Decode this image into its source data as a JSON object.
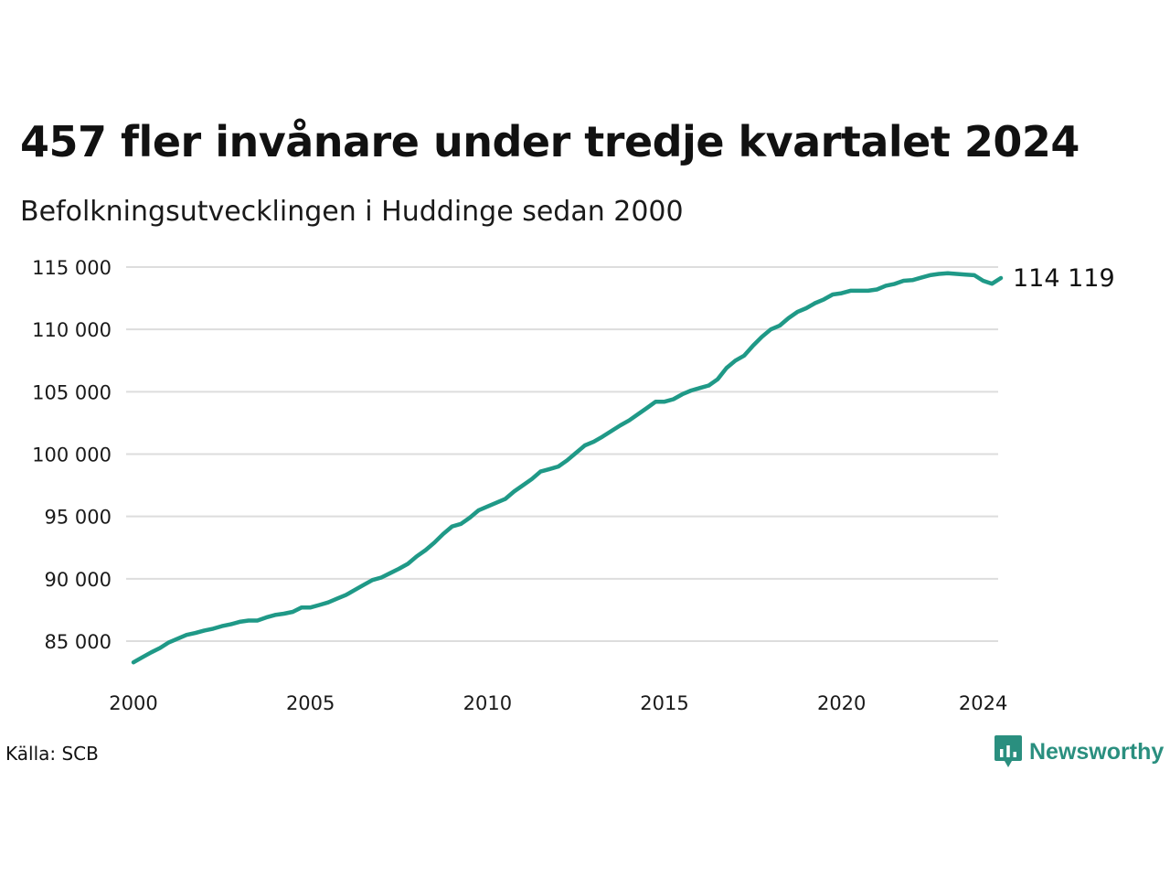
{
  "title": "457 fler invånare under tredje kvartalet 2024",
  "subtitle": "Befolkningsutvecklingen i Huddinge sedan 2000",
  "source": "Källa: SCB",
  "brand": {
    "name": "Newsworthy",
    "color": "#2a8f7f",
    "icon": "newsworthy-logo-icon"
  },
  "chart_data": {
    "type": "line",
    "title": "457 fler invånare under tredje kvartalet 2024",
    "subtitle": "Befolkningsutvecklingen i Huddinge sedan 2000",
    "xlabel": "",
    "ylabel": "",
    "x_range": [
      2000.0,
      2024.5
    ],
    "ylim": [
      83000,
      115000
    ],
    "grid": true,
    "legend": "none",
    "line_color": "#1f9987",
    "grid_color": "#dddddd",
    "y_ticks": [
      {
        "value": 85000,
        "label": "85 000"
      },
      {
        "value": 90000,
        "label": "90 000"
      },
      {
        "value": 95000,
        "label": "95 000"
      },
      {
        "value": 100000,
        "label": "100 000"
      },
      {
        "value": 105000,
        "label": "105 000"
      },
      {
        "value": 110000,
        "label": "110 000"
      },
      {
        "value": 115000,
        "label": "115 000"
      }
    ],
    "x_ticks": [
      {
        "value": 2000,
        "label": "2000"
      },
      {
        "value": 2005,
        "label": "2005"
      },
      {
        "value": 2010,
        "label": "2010"
      },
      {
        "value": 2015,
        "label": "2015"
      },
      {
        "value": 2020,
        "label": "2020"
      },
      {
        "value": 2024,
        "label": "2024"
      }
    ],
    "end_label": "114 119",
    "series": [
      {
        "points": [
          [
            2000.0,
            83300
          ],
          [
            2000.25,
            83700
          ],
          [
            2000.5,
            84100
          ],
          [
            2000.75,
            84450
          ],
          [
            2001.0,
            84900
          ],
          [
            2001.25,
            85200
          ],
          [
            2001.5,
            85500
          ],
          [
            2001.75,
            85650
          ],
          [
            2002.0,
            85850
          ],
          [
            2002.25,
            86000
          ],
          [
            2002.5,
            86200
          ],
          [
            2002.75,
            86350
          ],
          [
            2003.0,
            86550
          ],
          [
            2003.25,
            86650
          ],
          [
            2003.5,
            86650
          ],
          [
            2003.75,
            86900
          ],
          [
            2004.0,
            87100
          ],
          [
            2004.25,
            87200
          ],
          [
            2004.5,
            87350
          ],
          [
            2004.75,
            87700
          ],
          [
            2005.0,
            87700
          ],
          [
            2005.25,
            87900
          ],
          [
            2005.5,
            88100
          ],
          [
            2005.75,
            88400
          ],
          [
            2006.0,
            88700
          ],
          [
            2006.25,
            89100
          ],
          [
            2006.5,
            89500
          ],
          [
            2006.75,
            89900
          ],
          [
            2007.0,
            90100
          ],
          [
            2007.25,
            90450
          ],
          [
            2007.5,
            90800
          ],
          [
            2007.75,
            91200
          ],
          [
            2008.0,
            91800
          ],
          [
            2008.25,
            92300
          ],
          [
            2008.5,
            92900
          ],
          [
            2008.75,
            93600
          ],
          [
            2009.0,
            94200
          ],
          [
            2009.25,
            94400
          ],
          [
            2009.5,
            94900
          ],
          [
            2009.75,
            95500
          ],
          [
            2010.0,
            95800
          ],
          [
            2010.25,
            96100
          ],
          [
            2010.5,
            96400
          ],
          [
            2010.75,
            97000
          ],
          [
            2011.0,
            97500
          ],
          [
            2011.25,
            98000
          ],
          [
            2011.5,
            98600
          ],
          [
            2011.75,
            98800
          ],
          [
            2012.0,
            99000
          ],
          [
            2012.25,
            99500
          ],
          [
            2012.5,
            100100
          ],
          [
            2012.75,
            100700
          ],
          [
            2013.0,
            101000
          ],
          [
            2013.25,
            101400
          ],
          [
            2013.75,
            102300
          ],
          [
            2014.0,
            102700
          ],
          [
            2014.25,
            103200
          ],
          [
            2014.5,
            103700
          ],
          [
            2014.75,
            104200
          ],
          [
            2015.0,
            104200
          ],
          [
            2015.25,
            104400
          ],
          [
            2015.5,
            104800
          ],
          [
            2015.75,
            105100
          ],
          [
            2016.0,
            105300
          ],
          [
            2016.25,
            105500
          ],
          [
            2016.5,
            106000
          ],
          [
            2016.75,
            106900
          ],
          [
            2017.0,
            107500
          ],
          [
            2017.25,
            107900
          ],
          [
            2017.5,
            108700
          ],
          [
            2017.75,
            109400
          ],
          [
            2018.0,
            110000
          ],
          [
            2018.25,
            110300
          ],
          [
            2018.5,
            110900
          ],
          [
            2018.75,
            111400
          ],
          [
            2019.0,
            111700
          ],
          [
            2019.25,
            112100
          ],
          [
            2019.5,
            112400
          ],
          [
            2019.75,
            112800
          ],
          [
            2020.0,
            112900
          ],
          [
            2020.25,
            113100
          ],
          [
            2020.5,
            113100
          ],
          [
            2020.75,
            113100
          ],
          [
            2021.0,
            113200
          ],
          [
            2021.25,
            113500
          ],
          [
            2021.5,
            113650
          ],
          [
            2021.75,
            113900
          ],
          [
            2022.0,
            113950
          ],
          [
            2022.25,
            114150
          ],
          [
            2022.5,
            114350
          ],
          [
            2022.75,
            114450
          ],
          [
            2023.0,
            114500
          ],
          [
            2023.25,
            114450
          ],
          [
            2023.5,
            114400
          ],
          [
            2023.75,
            114350
          ],
          [
            2024.0,
            113900
          ],
          [
            2024.25,
            113662
          ],
          [
            2024.5,
            114119
          ]
        ]
      }
    ]
  }
}
